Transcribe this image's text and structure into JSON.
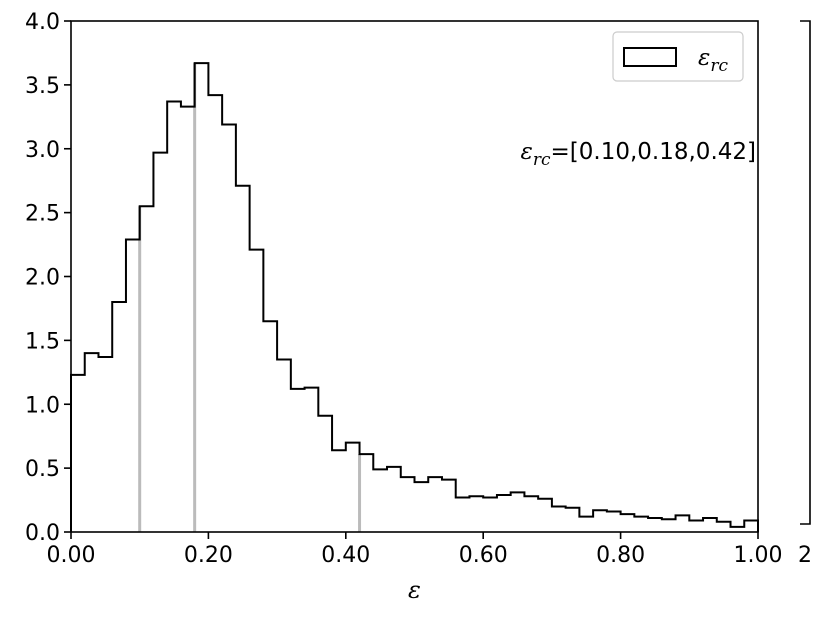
{
  "chart_data": {
    "type": "bar",
    "style": "step-histogram",
    "xlabel": "ε",
    "ylabel": "",
    "xlim": [
      0.0,
      1.0
    ],
    "ylim": [
      0.0,
      4.0
    ],
    "xticks": [
      0.0,
      0.2,
      0.4,
      0.6,
      0.8,
      1.0
    ],
    "xtick_labels": [
      "0.00",
      "0.20",
      "0.40",
      "0.60",
      "0.80",
      "1.00"
    ],
    "yticks": [
      0.0,
      0.5,
      1.0,
      1.5,
      2.0,
      2.5,
      3.0,
      3.5,
      4.0
    ],
    "ytick_labels": [
      "0.0",
      "0.5",
      "1.0",
      "1.5",
      "2.0",
      "2.5",
      "3.0",
      "3.5",
      "4.0"
    ],
    "bin_width": 0.02,
    "values": [
      1.23,
      1.4,
      1.37,
      1.8,
      2.29,
      2.55,
      2.97,
      3.37,
      3.33,
      3.67,
      3.42,
      3.19,
      2.71,
      2.21,
      1.65,
      1.35,
      1.12,
      1.13,
      0.91,
      0.64,
      0.7,
      0.61,
      0.49,
      0.51,
      0.43,
      0.39,
      0.43,
      0.41,
      0.27,
      0.28,
      0.27,
      0.29,
      0.31,
      0.28,
      0.26,
      0.2,
      0.19,
      0.12,
      0.17,
      0.16,
      0.14,
      0.12,
      0.11,
      0.1,
      0.13,
      0.09,
      0.11,
      0.08,
      0.04,
      0.09
    ],
    "series": [
      {
        "name": "ε_rc",
        "color": "#000000"
      }
    ],
    "quantile_lines": [
      0.1,
      0.18,
      0.42
    ],
    "quantile_line_color": "#bbbbbb",
    "annotation": {
      "symbol": "ε",
      "subscript": "rc",
      "text": "=[0.10,0.18,0.42]"
    },
    "legend": {
      "symbol": "ε",
      "subscript": "rc",
      "placement": "top-right"
    },
    "grid": false,
    "side_fragment_label": "2"
  }
}
